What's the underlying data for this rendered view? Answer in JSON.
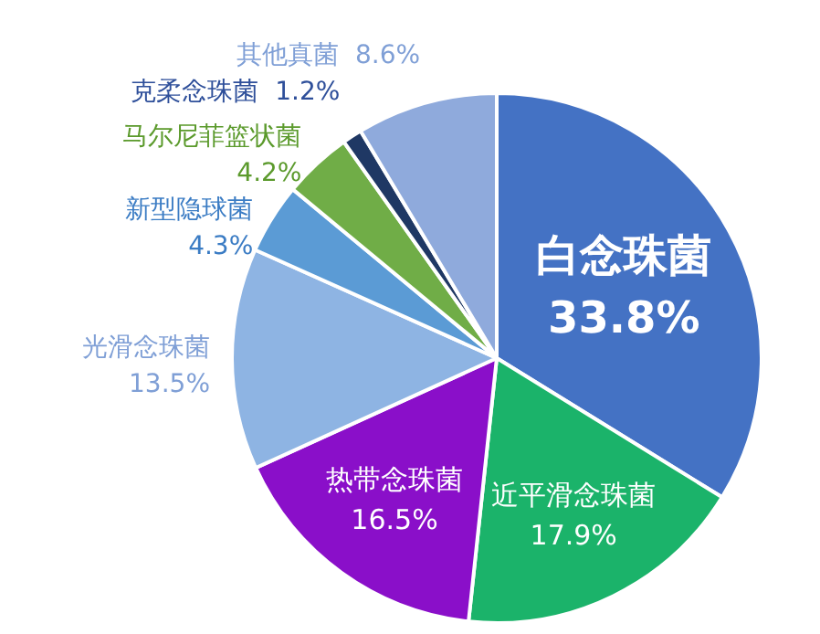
{
  "chart_data": {
    "type": "pie",
    "categories": [
      "白念珠菌",
      "近平滑念珠菌",
      "热带念珠菌",
      "光滑念珠菌",
      "新型隐球菌",
      "马尔尼菲篮状菌",
      "克柔念珠菌",
      "其他真菌"
    ],
    "values": [
      33.8,
      17.9,
      16.5,
      13.5,
      4.3,
      4.2,
      1.2,
      8.6
    ],
    "value_labels": [
      "33.8%",
      "17.9%",
      "16.5%",
      "13.5%",
      "4.3%",
      "4.2%",
      "1.2%",
      "8.6%"
    ],
    "colors": [
      "#4472c4",
      "#1bb36a",
      "#8a0fc9",
      "#8eb4e3",
      "#5b9bd5",
      "#70ad47",
      "#1f3864",
      "#8faadc"
    ]
  }
}
